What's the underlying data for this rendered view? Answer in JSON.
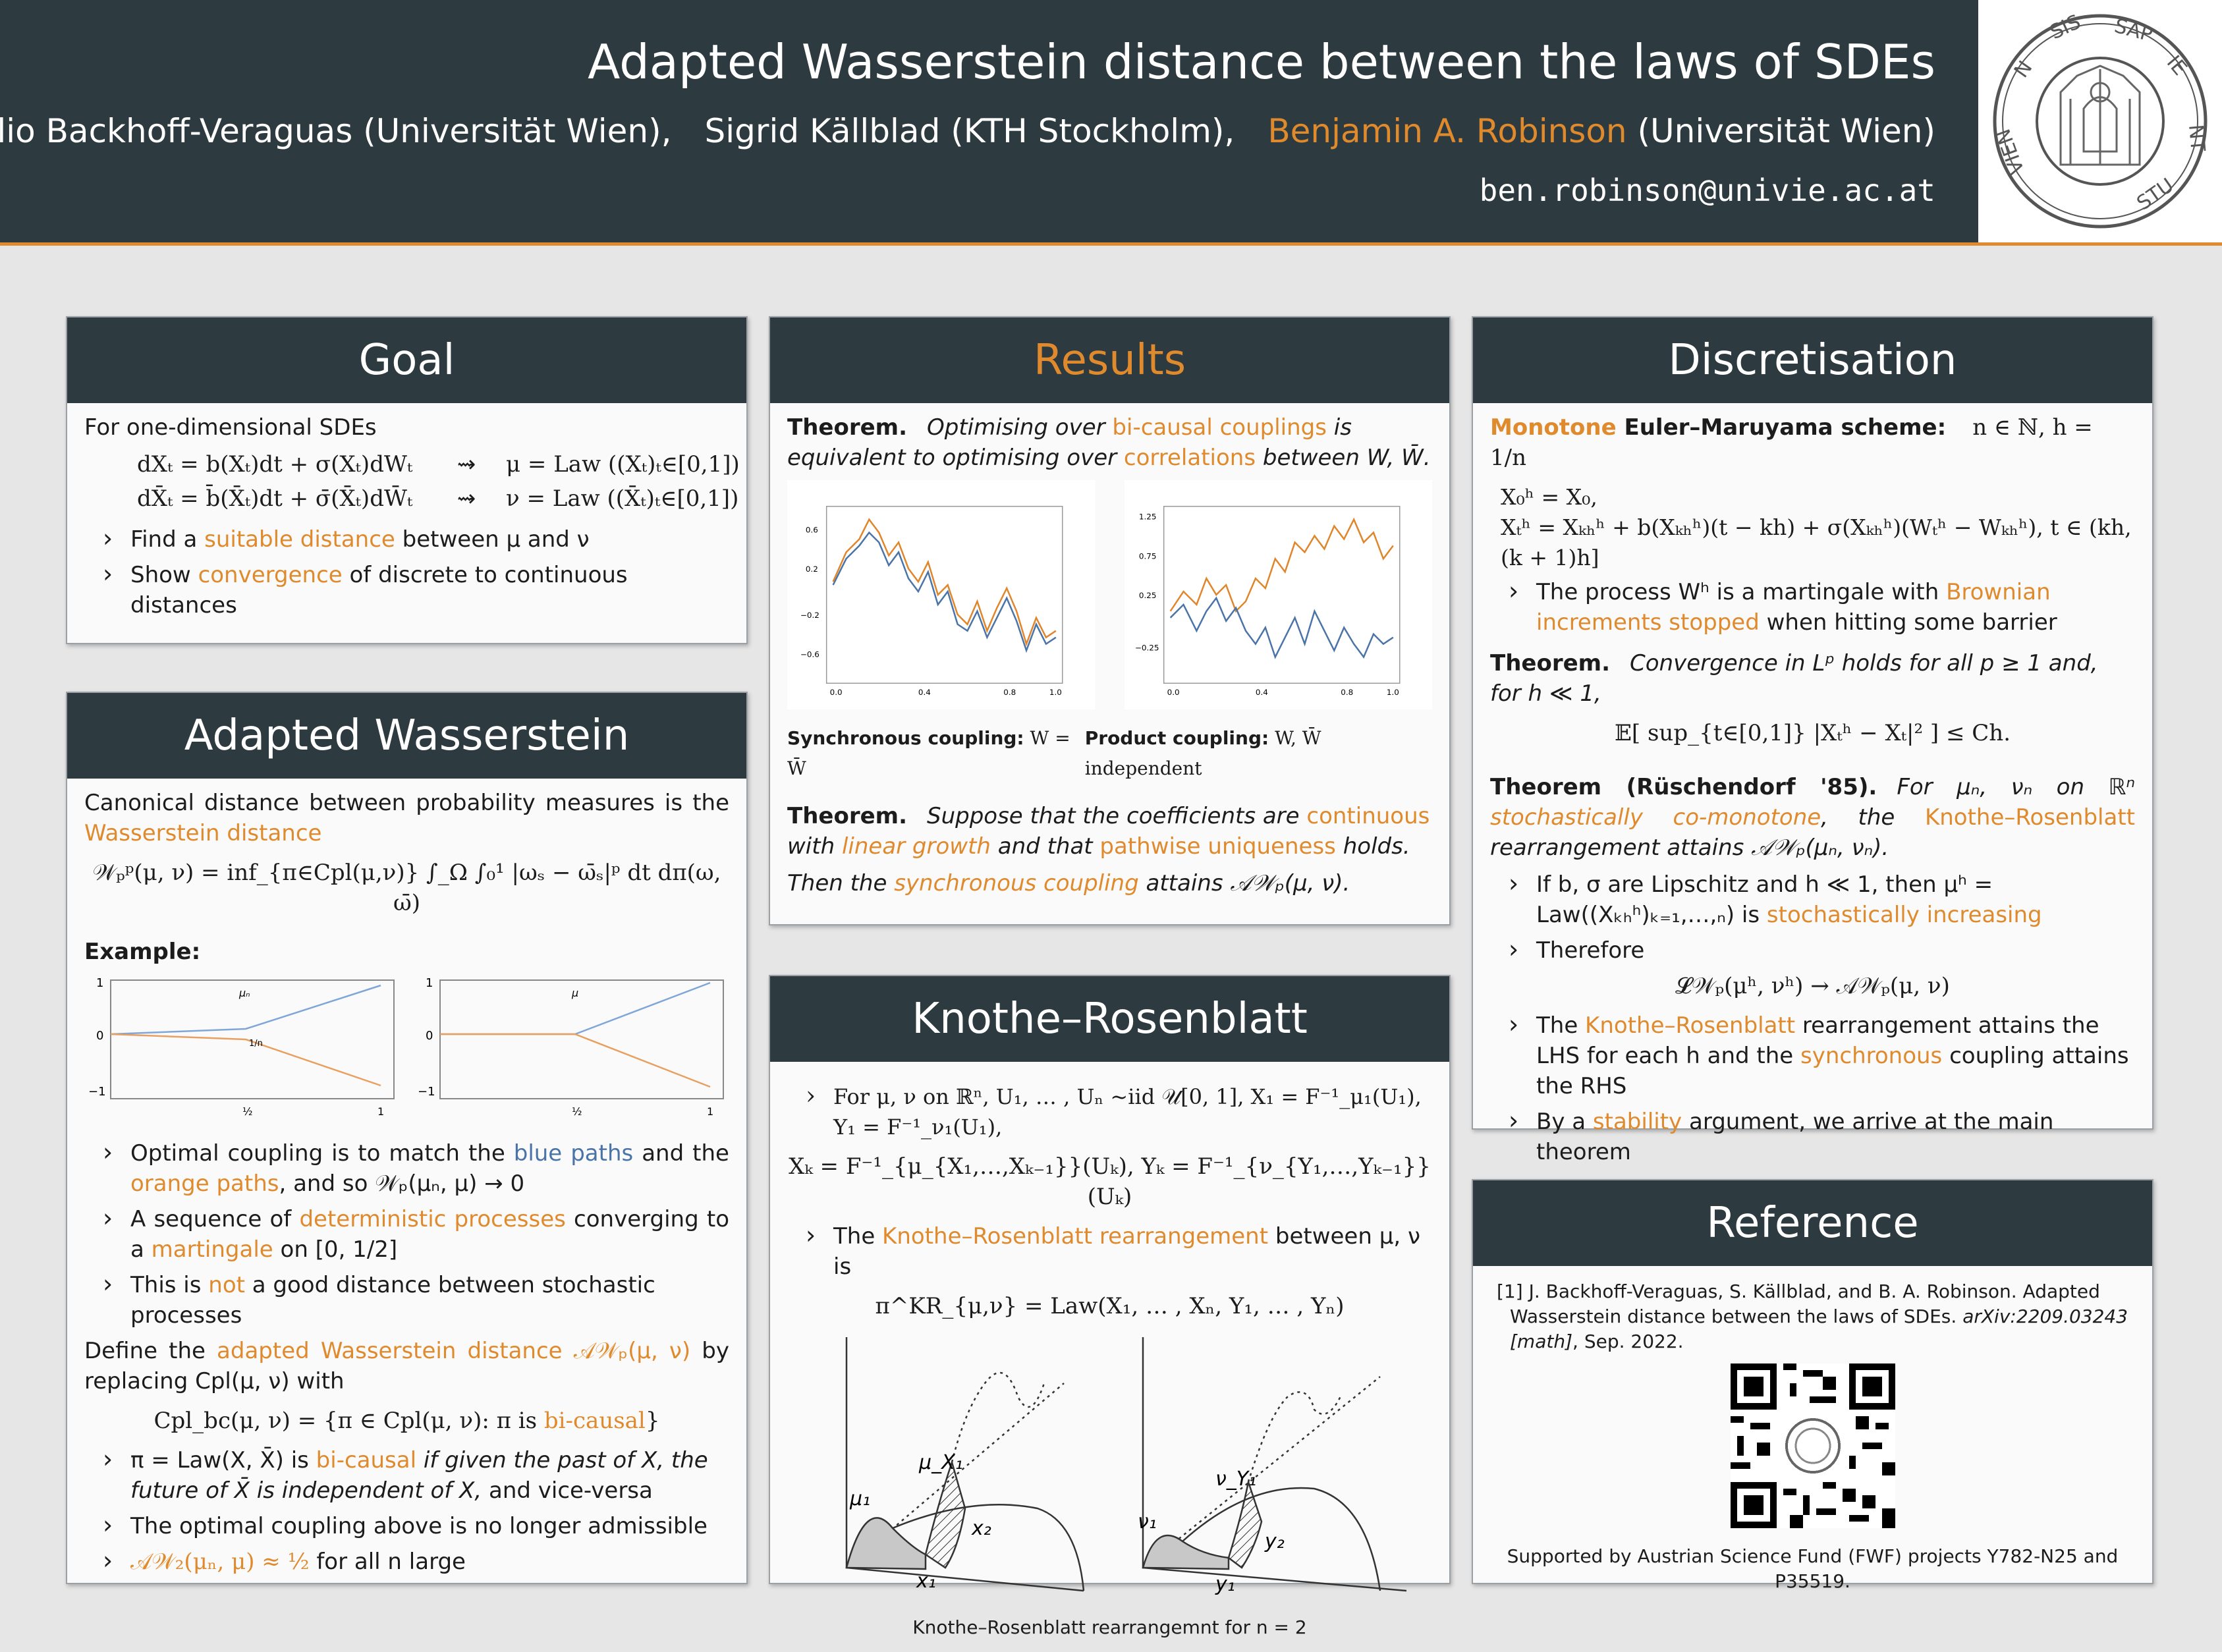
{
  "header": {
    "title": "Adapted Wasserstein distance between the laws of SDEs",
    "author1": "Julio Backhoff-Veraguas (Universität Wien),",
    "author2": "Sigrid Källblad (KTH Stockholm),",
    "author3_name": "Benjamin A. Robinson",
    "author3_affil": "(Universität Wien)",
    "email": "ben.robinson@univie.ac.at",
    "logo_icon": "university-vienna-seal-icon"
  },
  "goal": {
    "title": "Goal",
    "intro": "For one-dimensional SDEs",
    "eq1_left": "dXₜ = b(Xₜ)dt + σ(Xₜ)dWₜ",
    "eq1_arrow": "⇝",
    "eq1_right": "μ = Law ((Xₜ)ₜ∈[0,1])",
    "eq2_left": "dX̄ₜ = b̄(X̄ₜ)dt + σ̄(X̄ₜ)dW̄ₜ",
    "eq2_arrow": "⇝",
    "eq2_right": "ν = Law ((X̄ₜ)ₜ∈[0,1])",
    "b1_pre": "Find a ",
    "b1_hl": "suitable distance",
    "b1_post": " between μ and ν",
    "b2_pre": "Show ",
    "b2_hl": "convergence",
    "b2_post": " of discrete to continuous distances"
  },
  "adapted": {
    "title": "Adapted Wasserstein",
    "p1_pre": "Canonical distance between probability measures is the ",
    "p1_hl": "Wasserstein distance",
    "eq": "𝒲ₚᵖ(μ, ν) = inf_{π∈Cpl(μ,ν)} ∫_Ω ∫₀¹ |ωₛ − ω̄ₛ|ᵖ dt dπ(ω, ω̄)",
    "example": "Example:",
    "b1_a": "Optimal coupling is to match the ",
    "b1_blue": "blue paths",
    "b1_b": " and the ",
    "b1_or": "orange paths",
    "b1_c": ", and so 𝒲ₚ(μₙ, μ) → 0",
    "b2_a": "A sequence of ",
    "b2_hl1": "deterministic processes",
    "b2_b": " converging to a ",
    "b2_hl2": "martingale",
    "b2_c": " on [0, 1/2]",
    "b3_a": "This is ",
    "b3_hl": "not",
    "b3_b": " a good distance between stochastic processes",
    "p2_a": "Define the ",
    "p2_hl": "adapted Wasserstein distance 𝒜𝒲ₚ(μ, ν)",
    "p2_b": " by replacing Cpl(μ, ν) with",
    "eq2_a": "Cpl_bc(μ, ν) = {π ∈ Cpl(μ, ν):  π is ",
    "eq2_hl": "bi-causal",
    "eq2_b": "}",
    "b4_a": "π = Law(X, X̄) is ",
    "b4_hl": "bi-causal",
    "b4_b": " if given the past of X, the future of X̄ is independent of X,",
    "b4_c": " and vice-versa",
    "b5": "The optimal coupling above is no longer admissible",
    "b6_hl": "𝒜𝒲₂(μₙ, μ) ≈ ½",
    "b6_b": " for all n large"
  },
  "results": {
    "title": "Results",
    "thm1_label": "Theorem.",
    "thm1_a": "Optimising over ",
    "thm1_hl1": "bi-causal couplings",
    "thm1_b": " is equivalent to optimising over ",
    "thm1_hl2": "correlations",
    "thm1_c": " between W, W̄.",
    "cap1_bold": "Synchronous coupling:",
    "cap1_rest": " W = W̄",
    "cap2_bold": "Product coupling:",
    "cap2_rest": " W, W̄ independent",
    "thm2_label": "Theorem.",
    "thm2_a": "Suppose that the coefficients are ",
    "thm2_hl1": "continuous",
    "thm2_b": " with ",
    "thm2_hl2": "linear growth",
    "thm2_c": " and that ",
    "thm2_hl3": "pathwise uniqueness",
    "thm2_d": " holds.",
    "thm2_e": "Then the ",
    "thm2_hl4": "synchronous coupling",
    "thm2_f": " attains 𝒜𝒲ₚ(μ, ν)."
  },
  "knothe": {
    "title": "Knothe–Rosenblatt",
    "b1": "For μ, ν on ℝⁿ, U₁, … , Uₙ ~iid 𝒰[0, 1], X₁ = F⁻¹_μ₁(U₁), Y₁ = F⁻¹_ν₁(U₁),",
    "eq1": "Xₖ = F⁻¹_{μ_{X₁,…,Xₖ₋₁}}(Uₖ),     Yₖ = F⁻¹_{ν_{Y₁,…,Yₖ₋₁}}(Uₖ)",
    "b2_a": "The ",
    "b2_hl": "Knothe–Rosenblatt rearrangement",
    "b2_b": " between μ, ν is",
    "eq2": "π^KR_{μ,ν} = Law(X₁, … , Xₙ, Y₁, … , Yₙ)",
    "caption": "Knothe–Rosenblatt rearrangemnt for n = 2",
    "lbl_mu1": "μ₁",
    "lbl_muX1": "μ_X₁",
    "lbl_x1": "x₁",
    "lbl_x2": "x₂",
    "lbl_nu1": "ν₁",
    "lbl_nuY1": "ν_Y₁",
    "lbl_y1": "y₁",
    "lbl_y2": "y₂"
  },
  "discretisation": {
    "title": "Discretisation",
    "h_hl": "Monotone",
    "h_b": " Euler–Maruyama scheme:",
    "h_c": "n ∈ ℕ, h = 1/n",
    "eq1": "X₀ʰ = X₀,",
    "eq2": "Xₜʰ = Xₖₕʰ + b(Xₖₕʰ)(t − kh) + σ(Xₖₕʰ)(Wₜʰ − Wₖₕʰ),      t ∈ (kh, (k + 1)h]",
    "b1_a": "The process Wʰ is a martingale with ",
    "b1_hl1": "Brownian increments stopped",
    "b1_b": " when hitting some barrier",
    "thm1_label": "Theorem.",
    "thm1": "Convergence in Lᵖ holds for all p ≥ 1 and, for h ≪ 1,",
    "eq3": "𝔼[ sup_{t∈[0,1]} |Xₜʰ − Xₜ|² ] ≤ Ch.",
    "thm2_label": "Theorem (Rüschendorf '85).",
    "thm2_a": "For μₙ, νₙ on ℝⁿ ",
    "thm2_hl1": "stochastically co-monotone",
    "thm2_b": ", the ",
    "thm2_hl2": "Knothe–Rosenblatt",
    "thm2_c": " rearrangement attains 𝒜𝒲ₚ(μₙ, νₙ).",
    "b2_a": "If b, σ are Lipschitz and h ≪ 1, then μʰ = Law((Xₖₕʰ)ₖ₌₁,…,ₙ) is ",
    "b2_hl": "stochastically increasing",
    "b3": "Therefore",
    "eq4": "𝓛𝒲ₚ(μʰ, νʰ) → 𝒜𝒲ₚ(μ, ν)",
    "b4_a": "The ",
    "b4_hl1": "Knothe–Rosenblatt",
    "b4_b": " rearrangement attains the LHS for each h and the ",
    "b4_hl2": "synchronous",
    "b4_c": " coupling attains the RHS",
    "b5_a": "By a ",
    "b5_hl": "stability",
    "b5_b": " argument, we arrive at the main theorem"
  },
  "reference": {
    "title": "Reference",
    "ref": "[1] J. Backhoff-Veraguas, S. Källblad, and B. A. Robinson. Adapted Wasserstein distance between the laws of SDEs.",
    "ref_it": " arXiv:2209.03243 [math]",
    "ref_end": ", Sep. 2022.",
    "qr_icon": "qr-code-icon",
    "support": "Supported by Austrian Science Fund (FWF) projects Y782-N25 and P35519."
  },
  "colors": {
    "accent": "#e08a2e",
    "header_bg": "#2d3a3f",
    "blue": "#4a74a8"
  }
}
